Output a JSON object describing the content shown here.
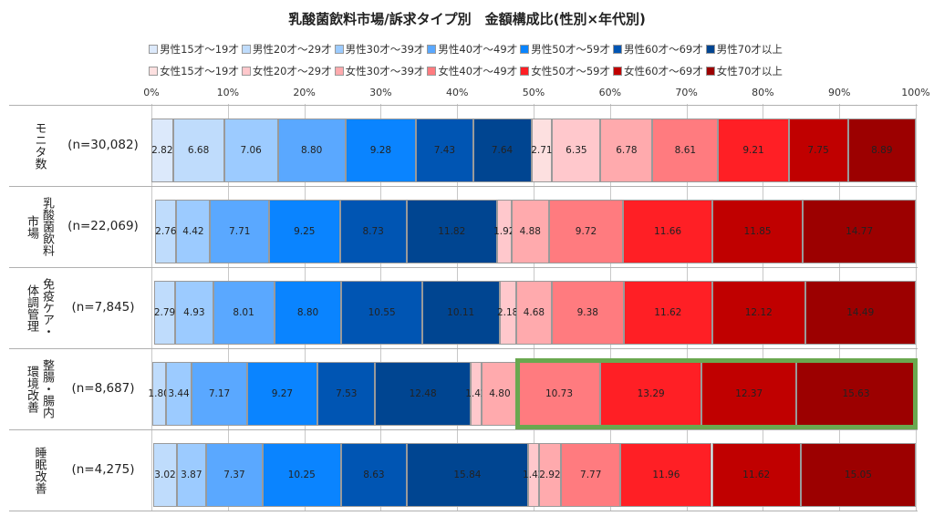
{
  "chart_data": {
    "type": "bar",
    "stacked": true,
    "percent": true,
    "orientation": "horizontal",
    "title": "乳酸菌飲料市場/訴求タイプ別　金額構成比(性別×年代別)",
    "xlim": [
      0,
      100
    ],
    "x_ticks": [
      "0%",
      "10%",
      "20%",
      "30%",
      "40%",
      "50%",
      "60%",
      "70%",
      "80%",
      "90%",
      "100%"
    ],
    "legend_position": "top",
    "series": [
      {
        "name": "男性15才～19才",
        "color": "#dce9fb"
      },
      {
        "name": "男性20才～29才",
        "color": "#bfdcfc"
      },
      {
        "name": "男性30才～39才",
        "color": "#9ccbff"
      },
      {
        "name": "男性40才～49才",
        "color": "#5aa8ff"
      },
      {
        "name": "男性50才～59才",
        "color": "#0a84ff"
      },
      {
        "name": "男性60才～69才",
        "color": "#0055b3"
      },
      {
        "name": "男性70才以上",
        "color": "#004591"
      },
      {
        "name": "女性15才～19才",
        "color": "#fde0e0"
      },
      {
        "name": "女性20才～29才",
        "color": "#ffc8cc"
      },
      {
        "name": "女性30才～39才",
        "color": "#ffaaad"
      },
      {
        "name": "女性40才～49才",
        "color": "#ff7b7f"
      },
      {
        "name": "女性50才～59才",
        "color": "#ff1f25"
      },
      {
        "name": "女性60才～69才",
        "color": "#c00000"
      },
      {
        "name": "女性70才以上",
        "color": "#9c0000"
      }
    ],
    "categories": [
      {
        "label": [
          "モニタ数"
        ],
        "n": "(n=30,082)",
        "values": [
          2.82,
          6.68,
          7.06,
          8.8,
          9.28,
          7.43,
          7.64,
          2.71,
          6.35,
          6.78,
          8.61,
          9.21,
          7.75,
          8.89
        ]
      },
      {
        "label": [
          "乳酸菌飲料",
          "市場"
        ],
        "n": "(n=22,069)",
        "values": [
          null,
          2.76,
          4.42,
          7.71,
          9.25,
          8.73,
          11.82,
          null,
          1.92,
          4.88,
          9.72,
          11.66,
          11.85,
          14.77
        ]
      },
      {
        "label": [
          "免疫ケア・",
          "体調管理"
        ],
        "n": "(n=7,845)",
        "values": [
          null,
          2.79,
          4.93,
          8.01,
          8.8,
          10.55,
          10.11,
          null,
          2.18,
          4.68,
          9.38,
          11.62,
          12.12,
          14.49
        ]
      },
      {
        "label": [
          "整腸・腸内",
          "環境改善"
        ],
        "n": "(n=8,687)",
        "values": [
          null,
          1.8,
          3.44,
          7.17,
          9.27,
          7.53,
          12.48,
          null,
          1.42,
          4.8,
          10.73,
          13.29,
          12.37,
          15.63
        ],
        "highlight": "女性40才以上"
      },
      {
        "label": [
          "睡眠改善"
        ],
        "n": "(n=4,275)",
        "values": [
          null,
          3.02,
          3.87,
          7.37,
          10.25,
          8.63,
          15.84,
          null,
          1.42,
          2.92,
          7.77,
          11.96,
          11.62,
          15.05
        ]
      }
    ],
    "highlight_color": "#6aa84f"
  }
}
